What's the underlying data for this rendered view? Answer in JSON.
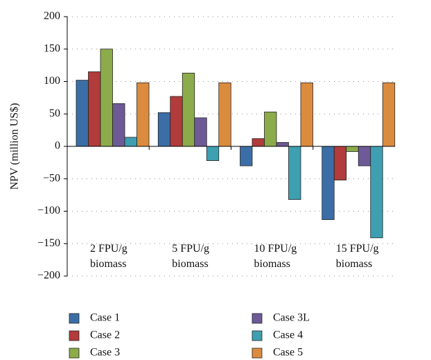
{
  "chart_data": {
    "type": "bar",
    "y_label": "NPV (million US$)",
    "categories": [
      "2 FPU/g biomass",
      "5 FPU/g biomass",
      "10 FPU/g biomass",
      "15 FPU/g biomass"
    ],
    "series": [
      {
        "name": "Case 1",
        "color": "#3b6ea6",
        "values": [
          102,
          52,
          -30,
          -113
        ]
      },
      {
        "name": "Case 2",
        "color": "#b23b3b",
        "values": [
          115,
          77,
          12,
          -52
        ]
      },
      {
        "name": "Case 3",
        "color": "#8cab4b",
        "values": [
          150,
          113,
          53,
          -8
        ]
      },
      {
        "name": "Case 3L",
        "color": "#6e5a97",
        "values": [
          66,
          44,
          6,
          -30
        ]
      },
      {
        "name": "Case 4",
        "color": "#3e9fb1",
        "values": [
          14,
          -22,
          -82,
          -141
        ]
      },
      {
        "name": "Case 5",
        "color": "#db8b3e",
        "values": [
          98,
          98,
          98,
          98
        ]
      }
    ],
    "ylim": [
      -200,
      200
    ],
    "yticks": [
      {
        "value": -200,
        "label": "−200"
      },
      {
        "value": -150,
        "label": "−150"
      },
      {
        "value": -100,
        "label": "−100"
      },
      {
        "value": -50,
        "label": "−50"
      },
      0,
      50,
      100,
      150,
      200
    ],
    "grid": true
  }
}
